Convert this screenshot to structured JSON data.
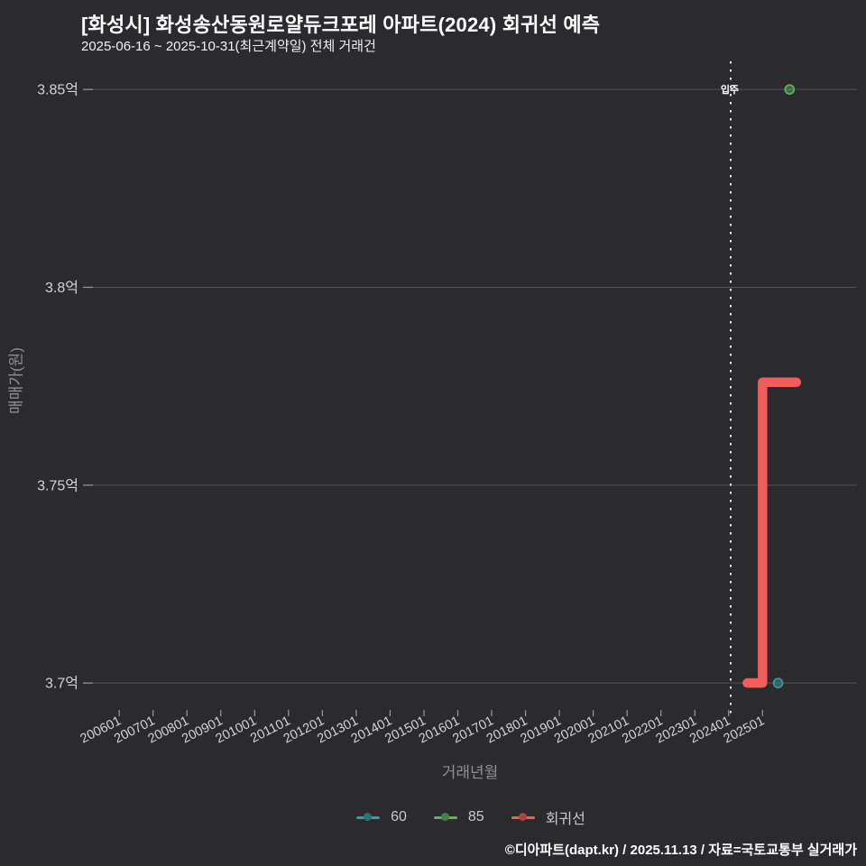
{
  "header": {
    "title": "[화성시] 화성송산동원로얄듀크포레 아파트(2024) 회귀선 예측",
    "subtitle": "2025-06-16 ~ 2025-10-31(최근계약일) 전체 거래건"
  },
  "footer": {
    "text": "©디아파트(dapt.kr) / 2025.11.13 / 자료=국토교통부 실거래가"
  },
  "legend": [
    {
      "label": "60",
      "color": "#3f9d9d"
    },
    {
      "label": "85",
      "color": "#5fb55f"
    },
    {
      "label": "회귀선",
      "color": "#f15c5c"
    }
  ],
  "chart_data": {
    "type": "scatter",
    "title": "[화성시] 화성송산동원로얄듀크포레 아파트(2024) 회귀선 예측",
    "subtitle": "2025-06-16 ~ 2025-10-31(최근계약일) 전체 거래건",
    "xlabel": "거래년월",
    "ylabel": "매매가(원)",
    "xlim": [
      2004.93,
      2027.79
    ],
    "ylim": [
      3.6932,
      3.8571
    ],
    "grid": true,
    "legend_position": "bottom-center",
    "y_unit": "억",
    "y_ticks": [
      {
        "label": "3.85억",
        "value": 3.85
      },
      {
        "label": "3.8억",
        "value": 3.8
      },
      {
        "label": "3.75억",
        "value": 3.75
      },
      {
        "label": "3.7억",
        "value": 3.7
      }
    ],
    "x_ticks": [
      {
        "label": "200601",
        "x": 2006.0
      },
      {
        "label": "200701",
        "x": 2007.0
      },
      {
        "label": "200801",
        "x": 2008.0
      },
      {
        "label": "200901",
        "x": 2009.0
      },
      {
        "label": "201001",
        "x": 2010.0
      },
      {
        "label": "201101",
        "x": 2011.0
      },
      {
        "label": "201201",
        "x": 2012.0
      },
      {
        "label": "201301",
        "x": 2013.0
      },
      {
        "label": "201401",
        "x": 2014.0
      },
      {
        "label": "201501",
        "x": 2015.0
      },
      {
        "label": "201601",
        "x": 2016.0
      },
      {
        "label": "201701",
        "x": 2017.0
      },
      {
        "label": "201801",
        "x": 2018.0
      },
      {
        "label": "201901",
        "x": 2019.0
      },
      {
        "label": "202001",
        "x": 2020.0
      },
      {
        "label": "202101",
        "x": 2021.0
      },
      {
        "label": "202201",
        "x": 2022.0
      },
      {
        "label": "202301",
        "x": 2023.0
      },
      {
        "label": "202401",
        "x": 2024.0
      },
      {
        "label": "202501",
        "x": 2025.0
      }
    ],
    "annotation": {
      "label": "입주",
      "x": 2024.06
    },
    "series": [
      {
        "name": "60",
        "type": "scatter",
        "color": "#3f9d9d",
        "points": [
          {
            "x": 2025.46,
            "y": 3.7
          }
        ]
      },
      {
        "name": "85",
        "type": "scatter",
        "color": "#5fb55f",
        "points": [
          {
            "x": 2025.8,
            "y": 3.85
          }
        ]
      },
      {
        "name": "회귀선",
        "type": "line",
        "color": "#f15c5c",
        "line_width": 10.5,
        "points": [
          {
            "x": 2024.55,
            "y": 3.7
          },
          {
            "x": 2025.0,
            "y": 3.7
          },
          {
            "x": 2025.0,
            "y": 3.776
          },
          {
            "x": 2026.0,
            "y": 3.776
          }
        ]
      }
    ]
  }
}
